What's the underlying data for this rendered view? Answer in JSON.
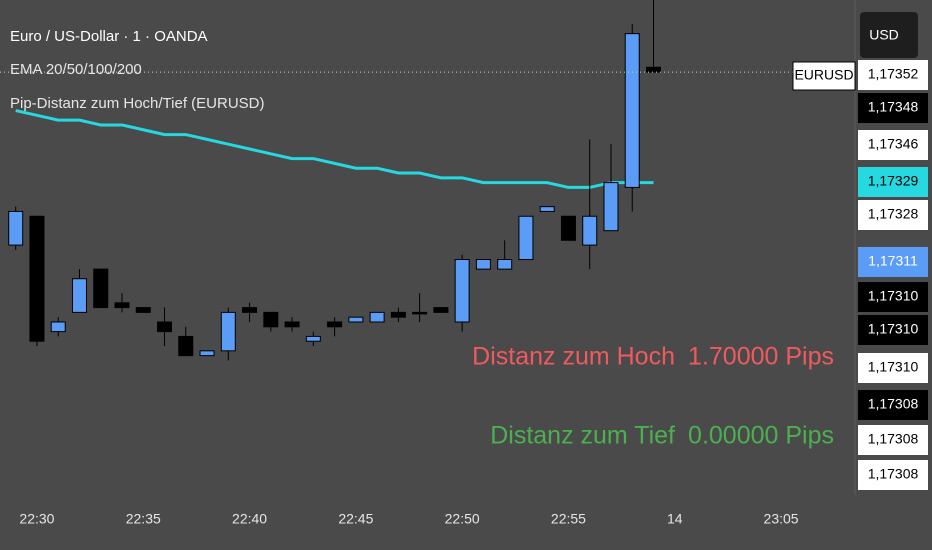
{
  "chart_data": {
    "type": "candlestick",
    "title": "Euro / US-Dollar · 1 · OANDA",
    "indicator_label": "Pip-Distanz zum Hoch/Tief (EURUSD)",
    "symbol_tag": "EURUSD",
    "currency_button": "USD",
    "up_color": "#5b9cf6",
    "down_color": "#000000",
    "ylim": [
      1.17264,
      1.17367
    ],
    "categories": [
      null,
      "22:30",
      null,
      null,
      null,
      null,
      "22:35",
      null,
      null,
      null,
      null,
      "22:40",
      null,
      null,
      null,
      null,
      "22:45",
      null,
      null,
      null,
      null,
      "22:50",
      null,
      null,
      null,
      null,
      "22:55",
      null,
      null,
      null,
      null,
      "14",
      null,
      null,
      null,
      null,
      "23:05",
      null,
      null
    ],
    "open": [
      1.17316,
      1.17322,
      1.17298,
      1.17302,
      1.17311,
      1.17304,
      1.17303,
      1.173,
      1.17297,
      1.17293,
      1.17294,
      1.17303,
      1.17302,
      1.173,
      1.17296,
      1.173,
      1.173,
      1.173,
      1.17302,
      1.17302,
      1.17303,
      1.173,
      1.17311,
      1.17311,
      1.17313,
      1.17323,
      1.17322,
      1.17316,
      1.17319,
      1.17328,
      1.17353,
      null,
      null,
      null,
      null,
      null,
      null,
      null,
      null
    ],
    "high": [
      1.17324,
      1.17322,
      1.17301,
      1.17311,
      1.17311,
      1.17306,
      1.17303,
      1.17303,
      1.17299,
      1.17294,
      1.17303,
      1.17304,
      1.17302,
      1.17301,
      1.17298,
      1.17301,
      1.17301,
      1.17302,
      1.17303,
      1.17306,
      1.17303,
      1.17314,
      1.17313,
      1.17317,
      1.17322,
      1.17324,
      1.17322,
      1.17338,
      1.17337,
      1.17362,
      1.17367,
      null,
      null,
      null,
      null,
      null,
      null,
      null,
      null
    ],
    "low": [
      1.17315,
      1.17295,
      1.17297,
      1.17302,
      1.17303,
      1.17302,
      1.17302,
      1.17295,
      1.17293,
      1.17293,
      1.17292,
      1.173,
      1.17298,
      1.17298,
      1.17295,
      1.17297,
      1.173,
      1.173,
      1.173,
      1.173,
      1.17302,
      1.17298,
      1.17311,
      1.17311,
      1.17313,
      1.17323,
      1.17317,
      1.17311,
      1.17319,
      1.17323,
      1.17352,
      null,
      null,
      null,
      null,
      null,
      null,
      null,
      null
    ],
    "close": [
      1.17323,
      1.17296,
      1.173,
      1.17309,
      1.17303,
      1.17303,
      1.17302,
      1.17298,
      1.17293,
      1.17294,
      1.17302,
      1.17302,
      1.17299,
      1.17299,
      1.17297,
      1.17299,
      1.17301,
      1.17302,
      1.17301,
      1.17302,
      1.17302,
      1.17313,
      1.17313,
      1.17313,
      1.17322,
      1.17324,
      1.17317,
      1.17322,
      1.17329,
      1.1736,
      1.17352,
      null,
      null,
      null,
      null,
      null,
      null,
      null,
      null
    ],
    "ema": {
      "name": "EMA 20/50/100/200",
      "color": "#26d8e0",
      "values": [
        1.17344,
        1.17343,
        1.17342,
        1.17342,
        1.17341,
        1.17341,
        1.1734,
        1.17339,
        1.17339,
        1.17338,
        1.17337,
        1.17336,
        1.17335,
        1.17334,
        1.17334,
        1.17333,
        1.17332,
        1.17332,
        1.17331,
        1.17331,
        1.1733,
        1.1733,
        1.17329,
        1.17329,
        1.17329,
        1.17329,
        1.17328,
        1.17328,
        1.17329,
        1.17329,
        1.17329,
        null,
        null,
        null,
        null,
        null,
        null,
        null,
        null
      ]
    },
    "price_tags": [
      {
        "label": "1,17352",
        "bg": "#ffffff",
        "fg": "#000000"
      },
      {
        "label": "1,17348",
        "bg": "#000000",
        "fg": "#ffffff"
      },
      {
        "label": "1,17346",
        "bg": "#ffffff",
        "fg": "#000000"
      },
      {
        "label": "1,17329",
        "bg": "#26d8e0",
        "fg": "#000000"
      },
      {
        "label": "1,17328",
        "bg": "#ffffff",
        "fg": "#000000"
      },
      {
        "label": "1,17311",
        "bg": "#5b9cf6",
        "fg": "#ffffff"
      },
      {
        "label": "1,17310",
        "bg": "#000000",
        "fg": "#ffffff"
      },
      {
        "label": "1,17310",
        "bg": "#000000",
        "fg": "#ffffff"
      },
      {
        "label": "1,17310",
        "bg": "#ffffff",
        "fg": "#000000"
      },
      {
        "label": "1,17308",
        "bg": "#000000",
        "fg": "#ffffff"
      },
      {
        "label": "1,17308",
        "bg": "#ffffff",
        "fg": "#000000"
      },
      {
        "label": "1,17308",
        "bg": "#ffffff",
        "fg": "#000000"
      }
    ],
    "info_table": [
      {
        "label": "Distanz zum Hoch",
        "value": "1.70000 Pips",
        "color": "#f05a5f"
      },
      {
        "label": "Distanz zum Tief",
        "value": "0.00000 Pips",
        "color": "#4caf50"
      }
    ]
  }
}
